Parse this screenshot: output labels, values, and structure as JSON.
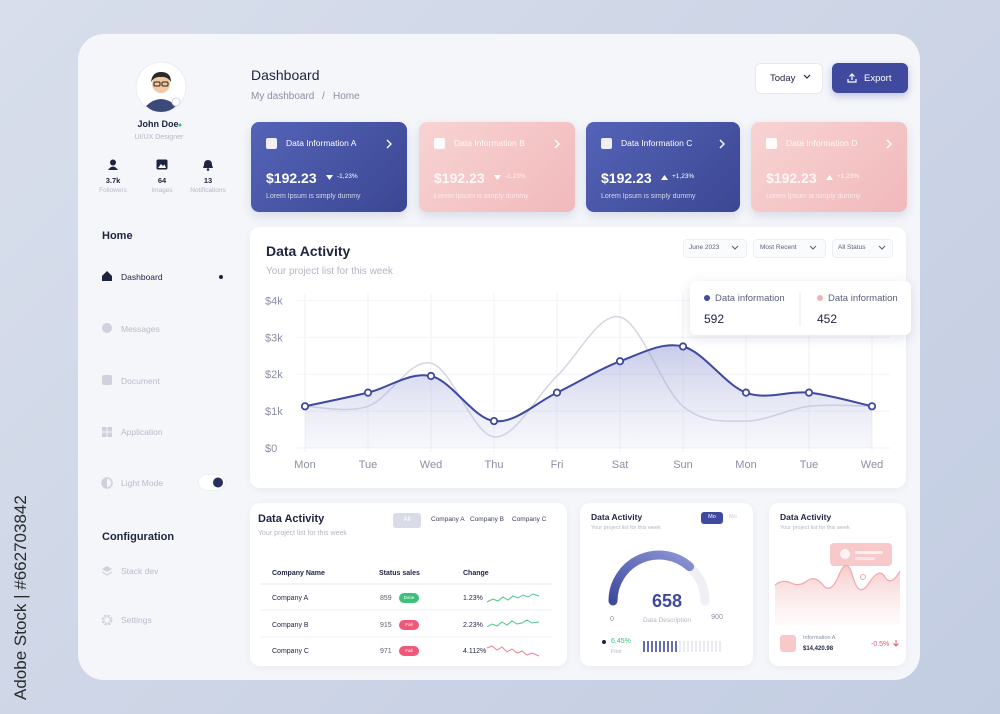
{
  "watermark": "Adobe Stock | #662703842",
  "profile": {
    "name": "John Doe",
    "role": "UI/UX Designer",
    "stats": [
      {
        "value": "3.7k",
        "label": "Followers"
      },
      {
        "value": "64",
        "label": "Images"
      },
      {
        "value": "13",
        "label": "Notifications"
      }
    ]
  },
  "nav": {
    "home_heading": "Home",
    "items": [
      "Dashboard",
      "Messages",
      "Document",
      "Application",
      "Light Mode"
    ],
    "config_heading": "Configuration",
    "config_items": [
      "Stack dev",
      "Settings"
    ]
  },
  "header": {
    "title": "Dashboard",
    "breadcrumb": [
      "My dashboard",
      "/",
      "Home"
    ],
    "period": "Today",
    "export": "Export"
  },
  "cards": [
    {
      "title": "Data Information A",
      "value": "$192.23",
      "change": "-1,23%",
      "note": "Lorem Ipsum is simply dummy"
    },
    {
      "title": "Data Information B",
      "value": "$192.23",
      "change": "-1,23%",
      "note": "Lorem Ipsum is simply dummy"
    },
    {
      "title": "Data Information C",
      "value": "$192.23",
      "change": "+1,23%",
      "note": "Lorem Ipsum is simply dummy"
    },
    {
      "title": "Data Information D",
      "value": "$192.23",
      "change": "+1,23%",
      "note": "Lorem Ipsum is simply dummy"
    }
  ],
  "activity": {
    "title": "Data Activity",
    "subtitle": "Your project list for this week",
    "filters": [
      "June 2023",
      "Most Recent",
      "All Status"
    ],
    "chart": {
      "type": "line",
      "categories": [
        "Mon",
        "Tue",
        "Wed",
        "Thu",
        "Fri",
        "Sat",
        "Sun",
        "Mon",
        "Tue",
        "Wed"
      ],
      "series": [
        {
          "name": "Data information",
          "color": "#3f4a9f",
          "legend_color": "#3f4a9f",
          "total": 592,
          "values": [
            1.13,
            1.5,
            1.95,
            0.73,
            1.5,
            2.35,
            2.75,
            1.5,
            1.5,
            1.13
          ]
        },
        {
          "name": "Data information",
          "color": "#d4d5e0",
          "legend_color": "#f2b3b5",
          "total": 452,
          "values": [
            1.13,
            1.13,
            2.3,
            0.3,
            1.95,
            3.55,
            1.13,
            0.73,
            1.13,
            1.13
          ]
        }
      ],
      "ylim": [
        0,
        4.2
      ],
      "yticks": [
        {
          "value": 0,
          "label": "$0"
        },
        {
          "value": 1,
          "label": "$1k"
        },
        {
          "value": 2,
          "label": "$2k"
        },
        {
          "value": 3,
          "label": "$3k"
        },
        {
          "value": 4,
          "label": "$4k"
        }
      ],
      "grid": true
    }
  },
  "table": {
    "title": "Data Activity",
    "subtitle": "Your project list for this week",
    "tabs": [
      "All",
      "Company A",
      "Company B",
      "Company C"
    ],
    "columns": [
      "Company Name",
      "Status sales",
      "Change"
    ],
    "rows": [
      [
        "Company A",
        "859",
        "Done",
        "1.23%"
      ],
      [
        "Company B",
        "915",
        "Fail",
        "2.23%"
      ],
      [
        "Company C",
        "971",
        "Fail",
        "4.112%"
      ]
    ]
  },
  "gauge": {
    "title": "Data Activity",
    "subtitle": "Your project list for this week",
    "tabs": [
      "Mo",
      "Mo"
    ],
    "min": 0,
    "max": 900,
    "value": 658,
    "caption": "Data Description",
    "change": "6,45%",
    "change_label": "First"
  },
  "mini": {
    "title": "Data Activity",
    "subtitle": "Your project list for this week",
    "item": "Information A",
    "amount": "$14,420.98",
    "change": "-0.5%"
  }
}
